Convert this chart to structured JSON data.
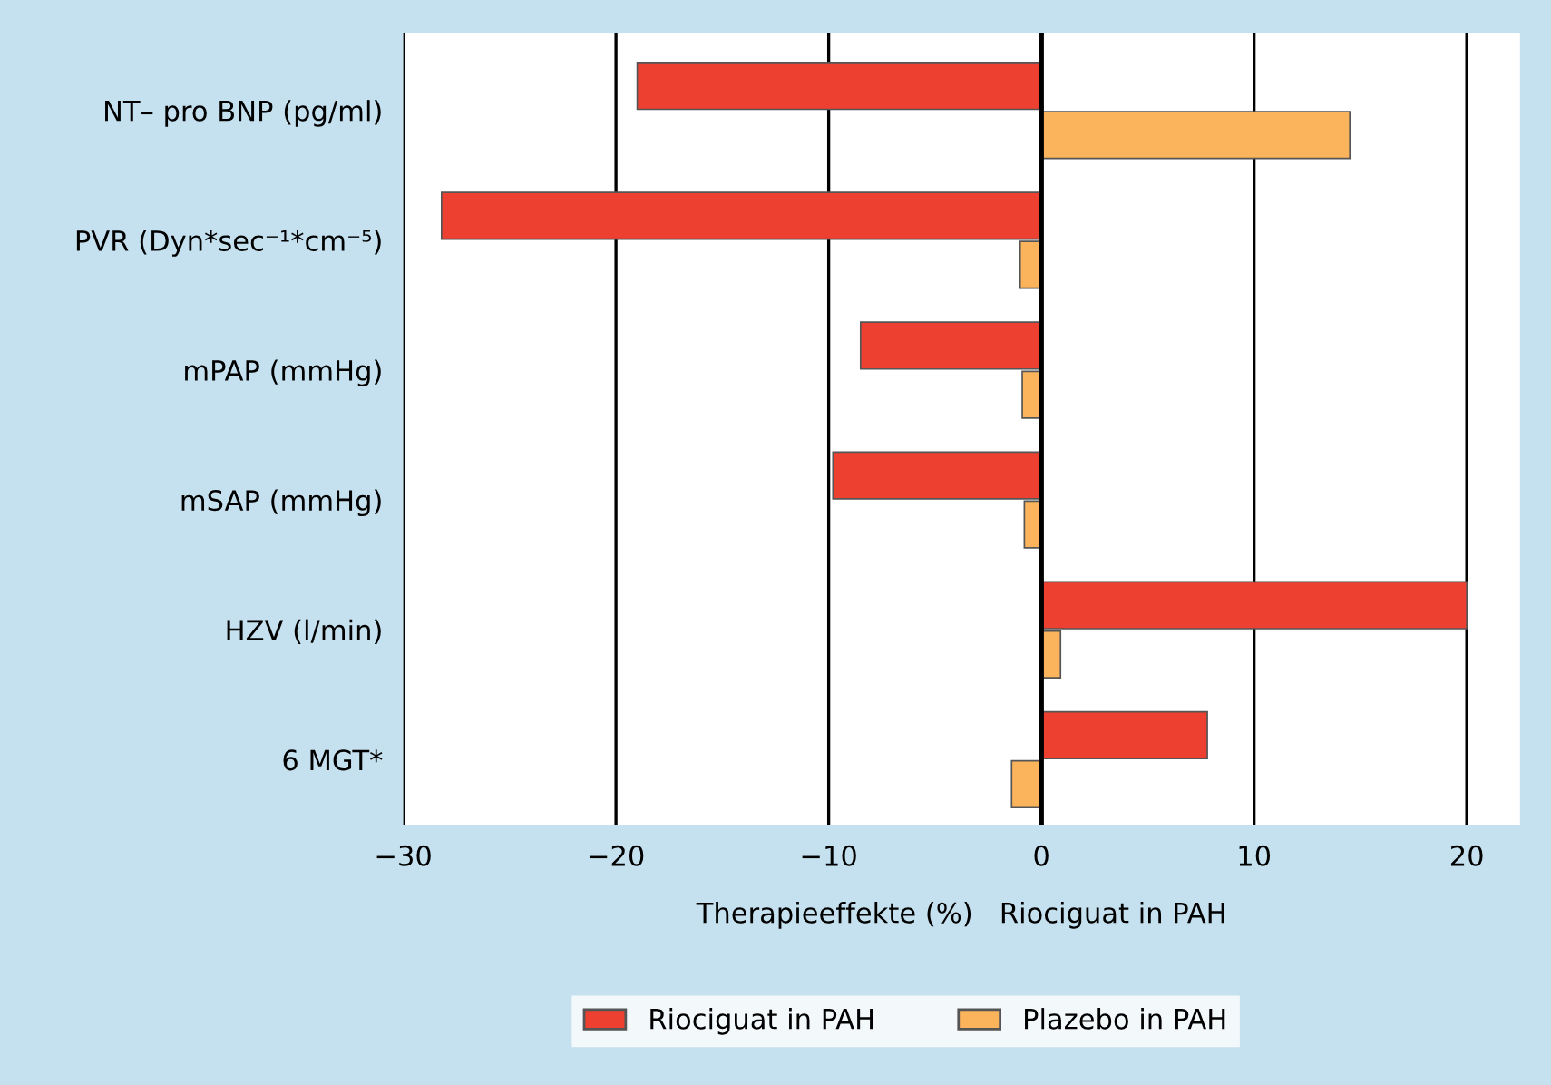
{
  "chart_data": {
    "type": "bar",
    "orientation": "horizontal",
    "xlabel": "Therapieeffekte (%)   Riociguat in PAH",
    "categories": [
      "NT– pro BNP (pg/ml)",
      "PVR (Dyn*sec⁻¹*cm⁻⁵)",
      "mPAP (mmHg)",
      "mSAP (mmHg)",
      "HZV (l/min)",
      "6 MGT*"
    ],
    "series": [
      {
        "name": "Riociguat in PAH",
        "color": "#ee4030",
        "values": [
          -19.0,
          -28.2,
          -8.5,
          -9.8,
          20.0,
          7.8
        ]
      },
      {
        "name": "Plazebo in PAH",
        "color": "#fbb45c",
        "values": [
          14.5,
          -1.0,
          -0.9,
          -0.8,
          0.9,
          -1.4
        ]
      }
    ],
    "xlim": [
      -30,
      22.5
    ],
    "xticks": [
      {
        "value": -30,
        "label": "−30"
      },
      {
        "value": -20,
        "label": "−20"
      },
      {
        "value": -10,
        "label": "−10"
      },
      0,
      10,
      20
    ],
    "ref_lines": [
      {
        "axis": "x",
        "value": 0
      }
    ],
    "grid": "x",
    "legend": "bottom"
  }
}
